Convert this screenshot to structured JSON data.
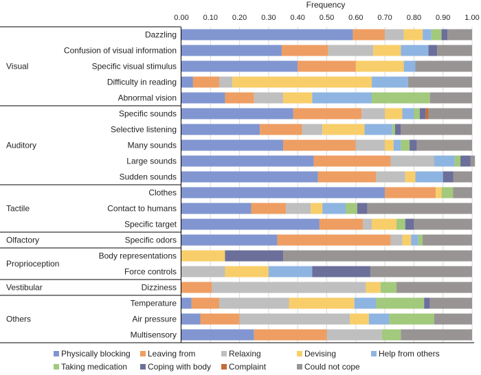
{
  "chart_data": {
    "type": "bar",
    "orientation": "horizontal",
    "stacked": true,
    "title": "",
    "xlabel": "Frequency",
    "ylabel": "",
    "xlim": [
      0,
      1
    ],
    "xticks": [
      "0.00",
      "0.10",
      "0.20",
      "0.30",
      "0.40",
      "0.50",
      "0.60",
      "0.70",
      "0.80",
      "0.90",
      "1.00"
    ],
    "legend_position": "bottom",
    "series": [
      {
        "name": "Physically blocking",
        "color": "#8196d0"
      },
      {
        "name": "Leaving from",
        "color": "#ee9e62"
      },
      {
        "name": "Relaxing",
        "color": "#bfbfbf"
      },
      {
        "name": "Devising",
        "color": "#f8ce6a"
      },
      {
        "name": "Help from others",
        "color": "#8eb4e1"
      },
      {
        "name": "Taking medication",
        "color": "#a2c97c"
      },
      {
        "name": "Coping with body",
        "color": "#6b6f9a"
      },
      {
        "name": "Complaint",
        "color": "#c46d37"
      },
      {
        "name": "Could not cope",
        "color": "#999494"
      }
    ],
    "groups": [
      {
        "label": "Visual",
        "rows": [
          {
            "label": "Dazzling",
            "values": [
              0.59,
              0.11,
              0.065,
              0.065,
              0.03,
              0.035,
              0.02,
              0.0,
              0.085
            ]
          },
          {
            "label": "Confusion of visual information",
            "values": [
              0.345,
              0.16,
              0.155,
              0.095,
              0.095,
              0.0,
              0.03,
              0.0,
              0.12
            ]
          },
          {
            "label": "Specific visual stimulus",
            "values": [
              0.4,
              0.2,
              0.0,
              0.165,
              0.04,
              0.0,
              0.0,
              0.0,
              0.195
            ]
          },
          {
            "label": "Difficulty in reading",
            "values": [
              0.04,
              0.09,
              0.045,
              0.48,
              0.125,
              0.0,
              0.0,
              0.0,
              0.22
            ]
          },
          {
            "label": "Abnormal vision",
            "values": [
              0.15,
              0.1,
              0.1,
              0.1,
              0.205,
              0.2,
              0.0,
              0.0,
              0.145
            ]
          }
        ]
      },
      {
        "label": "Auditory",
        "rows": [
          {
            "label": "Specific sounds",
            "values": [
              0.385,
              0.235,
              0.08,
              0.06,
              0.04,
              0.02,
              0.02,
              0.01,
              0.15
            ]
          },
          {
            "label": "Selective listening",
            "values": [
              0.27,
              0.145,
              0.07,
              0.145,
              0.095,
              0.01,
              0.02,
              0.0,
              0.245
            ]
          },
          {
            "label": "Many sounds",
            "values": [
              0.35,
              0.25,
              0.1,
              0.03,
              0.025,
              0.03,
              0.025,
              0.0,
              0.19
            ]
          },
          {
            "label": "Large sounds",
            "values": [
              0.455,
              0.265,
              0.15,
              0.0,
              0.07,
              0.02,
              0.035,
              0.0,
              0.015
            ]
          },
          {
            "label": "Sudden sounds",
            "values": [
              0.47,
              0.2,
              0.1,
              0.035,
              0.095,
              0.0,
              0.035,
              0.0,
              0.065
            ]
          }
        ]
      },
      {
        "label": "Tactile",
        "rows": [
          {
            "label": "Clothes",
            "values": [
              0.7,
              0.175,
              0.0,
              0.02,
              0.0,
              0.04,
              0.0,
              0.0,
              0.065
            ]
          },
          {
            "label": "Contact to humans",
            "values": [
              0.24,
              0.12,
              0.085,
              0.04,
              0.08,
              0.04,
              0.035,
              0.0,
              0.36
            ]
          },
          {
            "label": "Specific target",
            "values": [
              0.475,
              0.15,
              0.03,
              0.085,
              0.0,
              0.03,
              0.03,
              0.0,
              0.2
            ]
          }
        ]
      },
      {
        "label": "Olfactory",
        "rows": [
          {
            "label": "Specific odors",
            "values": [
              0.33,
              0.39,
              0.04,
              0.03,
              0.025,
              0.015,
              0.0,
              0.0,
              0.17
            ]
          }
        ]
      },
      {
        "label": "Proprioception",
        "rows": [
          {
            "label": "Body representations",
            "values": [
              0.0,
              0.0,
              0.0,
              0.15,
              0.0,
              0.0,
              0.2,
              0.0,
              0.65
            ]
          },
          {
            "label": "Force controls",
            "values": [
              0.0,
              0.0,
              0.15,
              0.15,
              0.15,
              0.0,
              0.2,
              0.0,
              0.35
            ]
          }
        ]
      },
      {
        "label": "Vestibular",
        "rows": [
          {
            "label": "Dizziness",
            "values": [
              0.0,
              0.105,
              0.53,
              0.05,
              0.0,
              0.055,
              0.0,
              0.0,
              0.26
            ]
          }
        ]
      },
      {
        "label": "Others",
        "rows": [
          {
            "label": "Temperature",
            "values": [
              0.035,
              0.095,
              0.24,
              0.225,
              0.075,
              0.165,
              0.02,
              0.0,
              0.145
            ]
          },
          {
            "label": "Air pressure",
            "values": [
              0.065,
              0.135,
              0.38,
              0.065,
              0.07,
              0.155,
              0.0,
              0.0,
              0.13
            ]
          },
          {
            "label": "Multisensory",
            "values": [
              0.25,
              0.25,
              0.19,
              0.0,
              0.0,
              0.065,
              0.0,
              0.0,
              0.245
            ]
          }
        ]
      }
    ]
  }
}
